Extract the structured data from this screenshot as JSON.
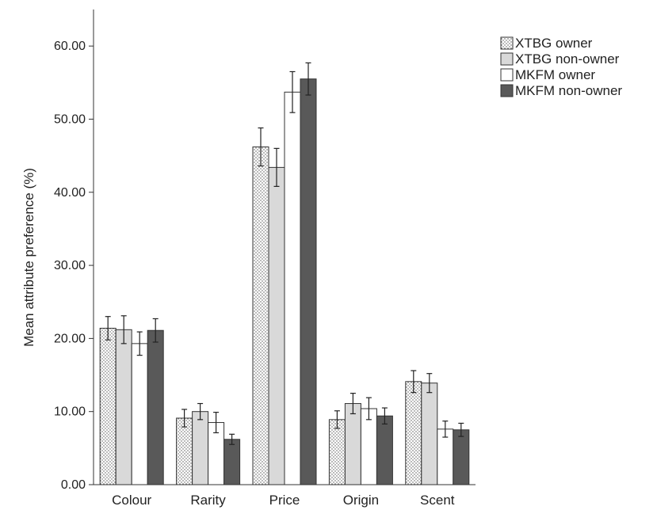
{
  "chart_data": {
    "type": "bar",
    "title": "",
    "xlabel": "",
    "ylabel": "Mean attribute preference (%)",
    "ylim": [
      0,
      65
    ],
    "yticks": [
      "0.00",
      "10.00",
      "20.00",
      "30.00",
      "40.00",
      "50.00",
      "60.00"
    ],
    "categories": [
      "Colour",
      "Rarity",
      "Price",
      "Origin",
      "Scent"
    ],
    "legend_position": "top-right",
    "grid": false,
    "series": [
      {
        "name": "XTBG owner",
        "pattern": "dots",
        "color": "#ffffff",
        "values": [
          21.4,
          9.1,
          46.2,
          8.9,
          14.1
        ],
        "errors": [
          1.6,
          1.2,
          2.6,
          1.2,
          1.5
        ]
      },
      {
        "name": "XTBG non-owner",
        "pattern": "solid",
        "color": "#d9d9d9",
        "values": [
          21.2,
          10.0,
          43.4,
          11.1,
          13.9
        ],
        "errors": [
          1.9,
          1.1,
          2.6,
          1.4,
          1.3
        ]
      },
      {
        "name": "MKFM owner",
        "pattern": "solid",
        "color": "#ffffff",
        "values": [
          19.3,
          8.5,
          53.7,
          10.4,
          7.6
        ],
        "errors": [
          1.6,
          1.4,
          2.8,
          1.5,
          1.1
        ]
      },
      {
        "name": "MKFM non-owner",
        "pattern": "solid",
        "color": "#595959",
        "values": [
          21.1,
          6.2,
          55.5,
          9.4,
          7.5
        ],
        "errors": [
          1.6,
          0.7,
          2.2,
          1.1,
          0.9
        ]
      }
    ]
  }
}
